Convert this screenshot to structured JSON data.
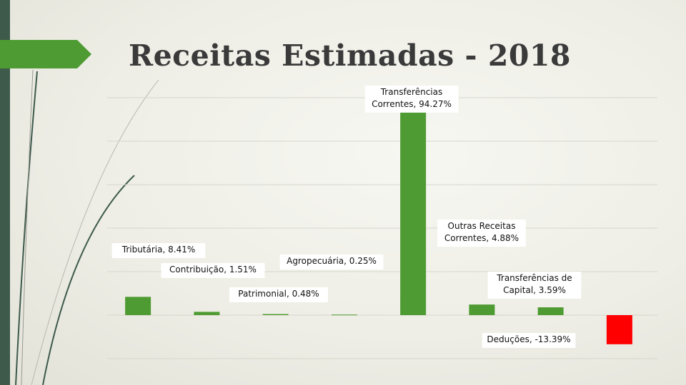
{
  "title": "Receitas Estimadas - 2018",
  "colors": {
    "positive": "#4f9b33",
    "negative": "#ff0000",
    "accent_tab": "#4f9b33",
    "strip": "#3d5a4a"
  },
  "chart_data": {
    "type": "bar",
    "categories": [
      "Tributária",
      "Contribuição",
      "Patrimonial",
      "Agropecuária",
      "Transferências Correntes",
      "Outras Receitas Correntes",
      "Transferências de Capital",
      "Deduções"
    ],
    "values": [
      8.41,
      1.51,
      0.48,
      0.25,
      94.27,
      4.88,
      3.59,
      -13.39
    ],
    "data_labels": [
      [
        "Tributária, 8.41%"
      ],
      [
        "Contribuição, 1.51%"
      ],
      [
        "Patrimonial, 0.48%"
      ],
      [
        "Agropecuária, 0.25%"
      ],
      [
        "Transferências",
        "Correntes, 94.27%"
      ],
      [
        "Outras Receitas",
        "Correntes, 4.88%"
      ],
      [
        "Transferências de",
        "Capital, 3.59%"
      ],
      [
        "Deduções, -13.39%"
      ]
    ],
    "unit": "%",
    "ylim": [
      -30,
      100
    ],
    "grid": true,
    "legend": "none"
  }
}
